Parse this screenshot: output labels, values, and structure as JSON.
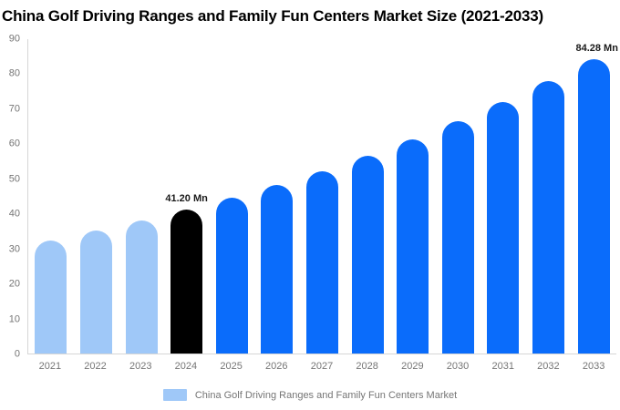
{
  "chart_data": {
    "type": "bar",
    "title": "China Golf Driving Ranges and Family Fun Centers Market Size (2021-2033)",
    "categories": [
      "2021",
      "2022",
      "2023",
      "2024",
      "2025",
      "2026",
      "2027",
      "2028",
      "2029",
      "2030",
      "2031",
      "2032",
      "2033"
    ],
    "values": [
      32.4,
      35.1,
      38.1,
      41.2,
      44.6,
      48.3,
      52.3,
      56.6,
      61.3,
      66.4,
      71.9,
      77.9,
      84.28
    ],
    "unit": "Mn",
    "ylim": [
      0,
      90
    ],
    "y_ticks": [
      0,
      10,
      20,
      30,
      40,
      50,
      60,
      70,
      80,
      90
    ],
    "grid": false,
    "legend": "China Golf Driving Ranges and Family Fun Centers Market",
    "legend_position": "bottom",
    "bar_colors": [
      "#9FC8F8",
      "#9FC8F8",
      "#9FC8F8",
      "#000000",
      "#0A6CFB",
      "#0A6CFB",
      "#0A6CFB",
      "#0A6CFB",
      "#0A6CFB",
      "#0A6CFB",
      "#0A6CFB",
      "#0A6CFB",
      "#0A6CFB"
    ],
    "annotations": [
      {
        "category": "2024",
        "text": "41.20 Mn"
      },
      {
        "category": "2033",
        "text": "84.28 Mn"
      }
    ],
    "colors": {
      "historical": "#9FC8F8",
      "base_year": "#000000",
      "forecast": "#0A6CFB",
      "legend_swatch": "#9FC8F8",
      "axis_text": "#757575",
      "axis_line": "#D6D6D6",
      "title_text": "#000000"
    }
  }
}
